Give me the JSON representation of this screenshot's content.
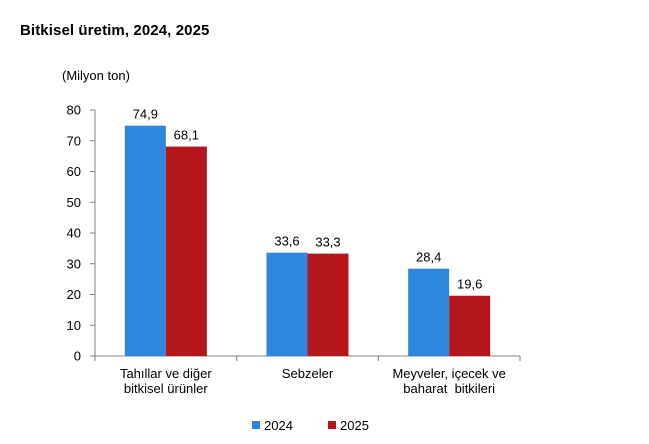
{
  "chart_data": {
    "type": "bar",
    "title": "Bitkisel üretim, 2024, 2025",
    "unit_label": "(Milyon ton)",
    "categories": [
      [
        "Tahıllar ve diğer",
        "bitkisel ürünler"
      ],
      [
        "Sebzeler"
      ],
      [
        "Meyveler, içecek ve",
        "baharat  bitkileri"
      ]
    ],
    "series": [
      {
        "name": "2024",
        "color": "#2e86de",
        "values": [
          74.9,
          33.6,
          28.4
        ],
        "labels": [
          "74,9",
          "33,6",
          "28,4"
        ]
      },
      {
        "name": "2025",
        "color": "#b5161b",
        "values": [
          68.1,
          33.3,
          19.6
        ],
        "labels": [
          "68,1",
          "33,3",
          "19,6"
        ]
      }
    ],
    "ylim": [
      0,
      80
    ],
    "yticks": [
      0,
      10,
      20,
      30,
      40,
      50,
      60,
      70,
      80
    ],
    "grid": false,
    "legend_position": "bottom"
  }
}
